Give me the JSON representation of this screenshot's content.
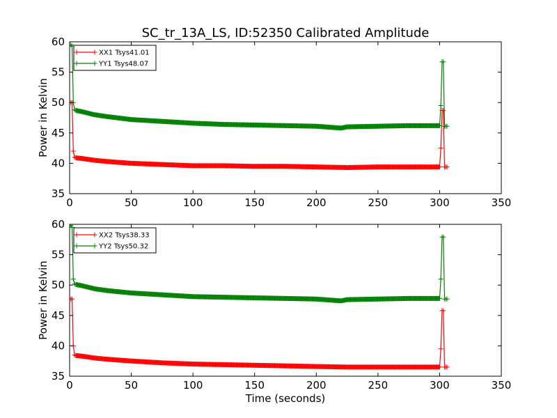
{
  "chart_data": [
    {
      "type": "line",
      "title": "SC_tr_13A_LS, ID:52350 Calibrated Amplitude",
      "xlabel": "",
      "ylabel": "Power in Kelvin",
      "xlim": [
        0,
        350
      ],
      "ylim": [
        35,
        60
      ],
      "xticks": [
        "0",
        "50",
        "100",
        "150",
        "200",
        "250",
        "300",
        "350"
      ],
      "yticks": [
        "35",
        "40",
        "45",
        "50",
        "55",
        "60"
      ],
      "grid": false,
      "legend_position": "top-left",
      "series": [
        {
          "name": "XX1 Tsys41.01",
          "color": "#ff0000",
          "marker": "+",
          "x": [
            1,
            2,
            3,
            4,
            5,
            10,
            20,
            30,
            50,
            75,
            100,
            125,
            150,
            175,
            200,
            225,
            250,
            275,
            300,
            301,
            302,
            303,
            304,
            305,
            306
          ],
          "y": [
            50.0,
            50.0,
            42.0,
            41.0,
            40.9,
            40.8,
            40.5,
            40.3,
            40.0,
            39.8,
            39.6,
            39.6,
            39.5,
            39.5,
            39.4,
            39.3,
            39.4,
            39.4,
            39.4,
            42.5,
            48.7,
            48.7,
            39.4,
            39.4,
            39.4
          ]
        },
        {
          "name": "YY1 Tsys48.07",
          "color": "#008000",
          "marker": "+",
          "x": [
            1,
            2,
            3,
            4,
            5,
            10,
            20,
            30,
            50,
            75,
            100,
            125,
            150,
            175,
            200,
            220,
            225,
            250,
            275,
            300,
            301,
            302,
            303,
            304,
            305,
            306
          ],
          "y": [
            59.5,
            59.3,
            50.0,
            48.8,
            48.7,
            48.5,
            48.0,
            47.7,
            47.2,
            46.9,
            46.6,
            46.4,
            46.3,
            46.2,
            46.1,
            45.8,
            46.0,
            46.1,
            46.2,
            46.2,
            49.5,
            56.7,
            56.7,
            46.1,
            46.1,
            46.1
          ]
        }
      ]
    },
    {
      "type": "line",
      "title": "",
      "xlabel": "Time (seconds)",
      "ylabel": "Power in Kelvin",
      "xlim": [
        0,
        350
      ],
      "ylim": [
        35,
        60
      ],
      "xticks": [
        "0",
        "50",
        "100",
        "150",
        "200",
        "250",
        "300",
        "350"
      ],
      "yticks": [
        "35",
        "40",
        "45",
        "50",
        "55",
        "60"
      ],
      "grid": false,
      "legend_position": "top-left",
      "series": [
        {
          "name": "XX2 Tsys38.33",
          "color": "#ff0000",
          "marker": "+",
          "x": [
            1,
            2,
            3,
            4,
            5,
            10,
            20,
            30,
            50,
            75,
            100,
            125,
            150,
            175,
            200,
            225,
            250,
            275,
            300,
            301,
            302,
            303,
            304,
            305,
            306
          ],
          "y": [
            47.7,
            47.7,
            40.0,
            38.5,
            38.4,
            38.3,
            38.0,
            37.8,
            37.5,
            37.2,
            37.0,
            36.9,
            36.8,
            36.7,
            36.6,
            36.5,
            36.5,
            36.5,
            36.5,
            39.5,
            45.8,
            45.8,
            36.5,
            36.5,
            36.5
          ]
        },
        {
          "name": "YY2 Tsys50.32",
          "color": "#008000",
          "marker": "+",
          "x": [
            1,
            2,
            3,
            4,
            5,
            10,
            20,
            30,
            50,
            75,
            100,
            125,
            150,
            175,
            200,
            220,
            225,
            250,
            275,
            300,
            301,
            302,
            303,
            304,
            305,
            306
          ],
          "y": [
            59.8,
            59.5,
            51.0,
            50.2,
            50.1,
            49.9,
            49.4,
            49.1,
            48.7,
            48.4,
            48.1,
            48.0,
            47.9,
            47.8,
            47.7,
            47.4,
            47.6,
            47.7,
            47.8,
            47.8,
            51.0,
            57.9,
            57.9,
            47.7,
            47.7,
            47.7
          ]
        }
      ]
    }
  ]
}
